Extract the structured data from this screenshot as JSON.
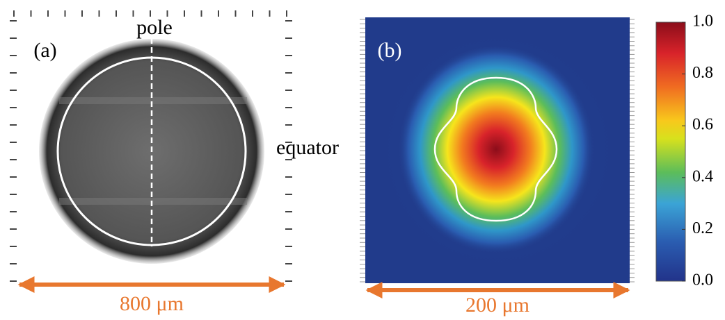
{
  "panel_a": {
    "label": "(a)",
    "pole": "pole",
    "equator": "equator",
    "scale": "800 μm"
  },
  "panel_b": {
    "label": "(b)",
    "scale": "200 μm"
  },
  "colorbar": {
    "lim": [
      0,
      1
    ],
    "ticks": [
      {
        "value": 0,
        "label": "0.0"
      },
      {
        "value": 0.2,
        "label": "0.2"
      },
      {
        "value": 0.4,
        "label": "0.4"
      },
      {
        "value": 0.6,
        "label": "0.6"
      },
      {
        "value": 0.8,
        "label": "0.8"
      },
      {
        "value": 1,
        "label": "1.0"
      }
    ]
  }
}
